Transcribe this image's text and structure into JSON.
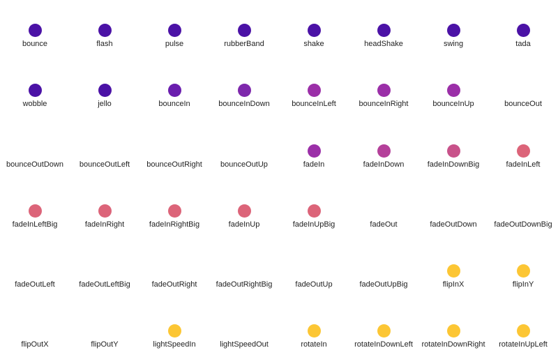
{
  "colors": {
    "purple": "#4b12a6",
    "purple_dither": "#6a1eae",
    "violet_dither": "#7e28ac",
    "magenta": "#9b2fa8",
    "magenta_dither": "#b4409a",
    "pink_dither": "#c8528a",
    "pink": "#dc6479",
    "yellow": "#fcc634"
  },
  "items": [
    {
      "label": "bounce",
      "color": "purple"
    },
    {
      "label": "flash",
      "color": "purple"
    },
    {
      "label": "pulse",
      "color": "purple"
    },
    {
      "label": "rubberBand",
      "color": "purple"
    },
    {
      "label": "shake",
      "color": "purple"
    },
    {
      "label": "headShake",
      "color": "purple"
    },
    {
      "label": "swing",
      "color": "purple"
    },
    {
      "label": "tada",
      "color": "purple"
    },
    {
      "label": "wobble",
      "color": "purple"
    },
    {
      "label": "jello",
      "color": "purple"
    },
    {
      "label": "bounceIn",
      "color": "purple_dither"
    },
    {
      "label": "bounceInDown",
      "color": "violet_dither"
    },
    {
      "label": "bounceInLeft",
      "color": "magenta"
    },
    {
      "label": "bounceInRight",
      "color": "magenta"
    },
    {
      "label": "bounceInUp",
      "color": "magenta"
    },
    {
      "label": "bounceOut",
      "color": null
    },
    {
      "label": "bounceOutDown",
      "color": null
    },
    {
      "label": "bounceOutLeft",
      "color": null
    },
    {
      "label": "bounceOutRight",
      "color": null
    },
    {
      "label": "bounceOutUp",
      "color": null
    },
    {
      "label": "fadeIn",
      "color": "magenta"
    },
    {
      "label": "fadeInDown",
      "color": "magenta_dither"
    },
    {
      "label": "fadeInDownBig",
      "color": "pink_dither"
    },
    {
      "label": "fadeInLeft",
      "color": "pink"
    },
    {
      "label": "fadeInLeftBig",
      "color": "pink"
    },
    {
      "label": "fadeInRight",
      "color": "pink"
    },
    {
      "label": "fadeInRightBig",
      "color": "pink"
    },
    {
      "label": "fadeInUp",
      "color": "pink"
    },
    {
      "label": "fadeInUpBig",
      "color": "pink"
    },
    {
      "label": "fadeOut",
      "color": null
    },
    {
      "label": "fadeOutDown",
      "color": null
    },
    {
      "label": "fadeOutDownBig",
      "color": null
    },
    {
      "label": "fadeOutLeft",
      "color": null
    },
    {
      "label": "fadeOutLeftBig",
      "color": null
    },
    {
      "label": "fadeOutRight",
      "color": null
    },
    {
      "label": "fadeOutRightBig",
      "color": null
    },
    {
      "label": "fadeOutUp",
      "color": null
    },
    {
      "label": "fadeOutUpBig",
      "color": null
    },
    {
      "label": "flipInX",
      "color": "yellow"
    },
    {
      "label": "flipInY",
      "color": "yellow"
    },
    {
      "label": "flipOutX",
      "color": null
    },
    {
      "label": "flipOutY",
      "color": null
    },
    {
      "label": "lightSpeedIn",
      "color": "yellow"
    },
    {
      "label": "lightSpeedOut",
      "color": null
    },
    {
      "label": "rotateIn",
      "color": "yellow"
    },
    {
      "label": "rotateInDownLeft",
      "color": "yellow"
    },
    {
      "label": "rotateInDownRight",
      "color": "yellow"
    },
    {
      "label": "rotateInUpLeft",
      "color": "yellow"
    }
  ]
}
